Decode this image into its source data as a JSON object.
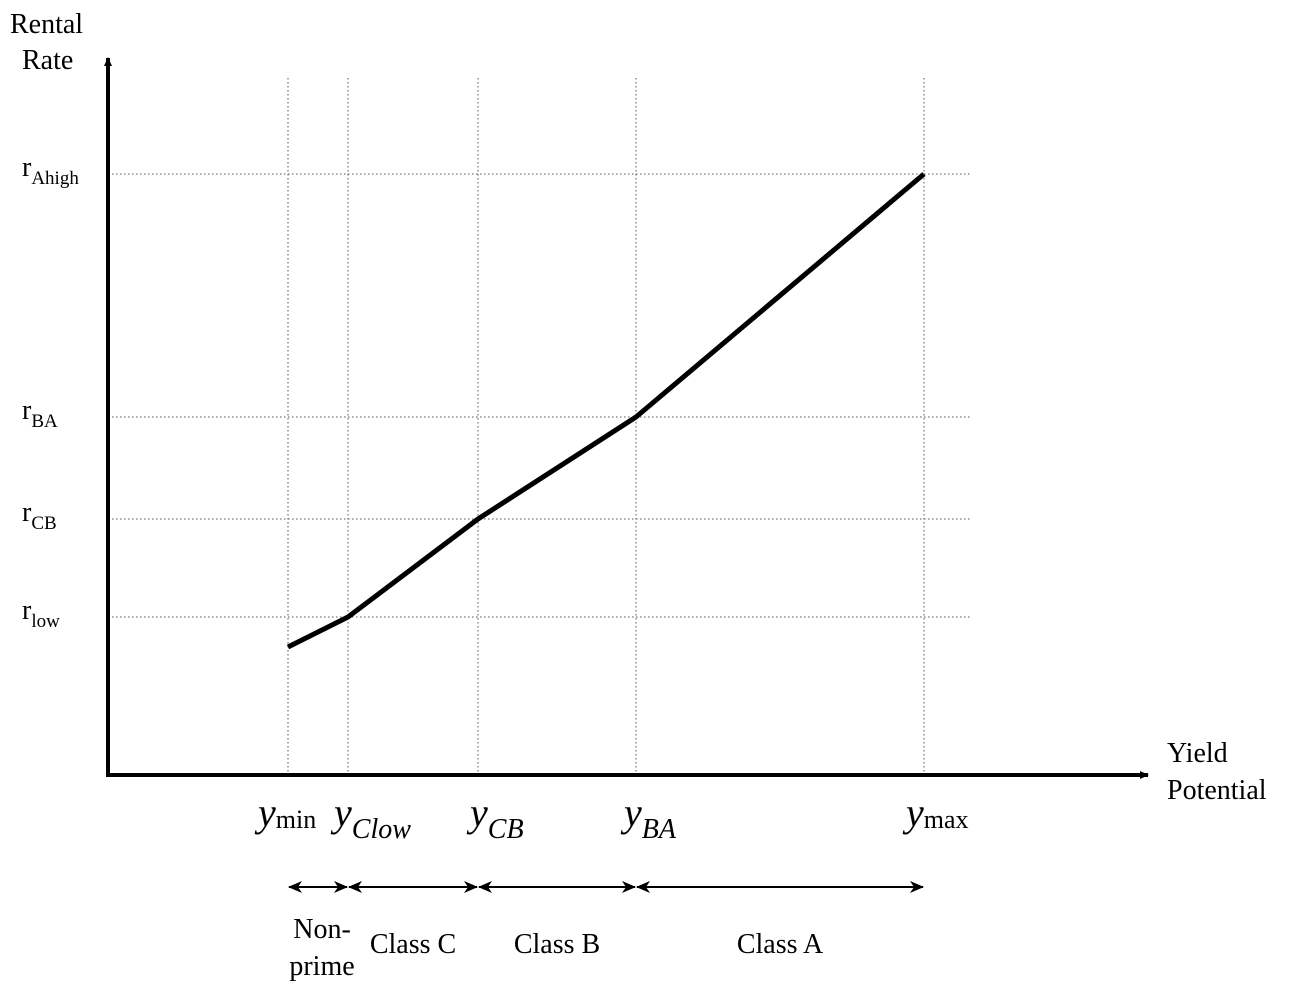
{
  "chart_data": {
    "type": "line",
    "axes": {
      "y_label_line1": "Rental",
      "y_label_line2": "Rate",
      "x_label_line1": "Yield",
      "x_label_line2": "Potential"
    },
    "y_ticks": [
      {
        "id": "r_low",
        "base": "r",
        "sub": "low"
      },
      {
        "id": "r_CB",
        "base": "r",
        "sub": "CB"
      },
      {
        "id": "r_BA",
        "base": "r",
        "sub": "BA"
      },
      {
        "id": "r_Ahigh",
        "base": "r",
        "sub": "Ahigh"
      }
    ],
    "x_ticks": [
      {
        "id": "y_min",
        "base": "y",
        "sub": "min",
        "sub_italic": false
      },
      {
        "id": "y_Clow",
        "base": "y",
        "sub": "Clow",
        "sub_italic": true
      },
      {
        "id": "y_CB",
        "base": "y",
        "sub": "CB",
        "sub_italic": true
      },
      {
        "id": "y_BA",
        "base": "y",
        "sub": "BA",
        "sub_italic": true
      },
      {
        "id": "y_max",
        "base": "y",
        "sub": "max",
        "sub_italic": false
      }
    ],
    "series": [
      {
        "points": [
          {
            "x": "y_min",
            "y": "below r_low"
          },
          {
            "x": "y_Clow",
            "y": "r_low"
          },
          {
            "x": "y_CB",
            "y": "r_CB"
          },
          {
            "x": "y_BA",
            "y": "r_BA"
          },
          {
            "x": "y_max",
            "y": "r_Ahigh"
          }
        ]
      }
    ],
    "ranges": [
      {
        "from": "y_min",
        "to": "y_Clow",
        "label_line1": "Non-",
        "label_line2": "prime"
      },
      {
        "from": "y_Clow",
        "to": "y_CB",
        "label": "Class C"
      },
      {
        "from": "y_CB",
        "to": "y_BA",
        "label": "Class B"
      },
      {
        "from": "y_BA",
        "to": "y_max",
        "label": "Class A"
      }
    ],
    "grid": "dotted guide lines at each tick"
  }
}
